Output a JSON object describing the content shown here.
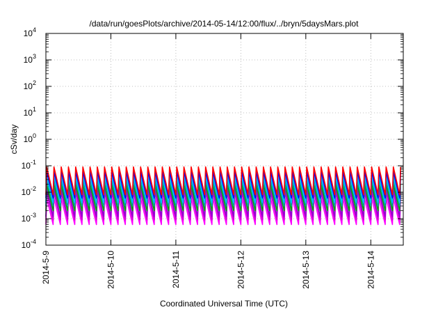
{
  "chart_data": {
    "type": "line",
    "title": "/data/run/goesPlots/archive/2014-05-14/12:00/flux/../bryn/5daysMars.plot",
    "xlabel": "Coordinated Universal Time (UTC)",
    "ylabel": "cSv/day",
    "yscale": "log",
    "ylim": [
      0.0001,
      10000
    ],
    "xlim": [
      "2014-05-09 00:00",
      "2014-05-14 12:00"
    ],
    "grid": true,
    "x_ticks": [
      "2014-5-9",
      "2014-5-10",
      "2014-5-11",
      "2014-5-12",
      "2014-5-13",
      "2014-5-14"
    ],
    "y_ticks": [
      {
        "base": "10",
        "exp": "-4"
      },
      {
        "base": "10",
        "exp": "-3"
      },
      {
        "base": "10",
        "exp": "-2"
      },
      {
        "base": "10",
        "exp": "-1"
      },
      {
        "base": "10",
        "exp": "0"
      },
      {
        "base": "10",
        "exp": "1"
      },
      {
        "base": "10",
        "exp": "2"
      },
      {
        "base": "10",
        "exp": "3"
      },
      {
        "base": "10",
        "exp": "4"
      }
    ],
    "pattern": {
      "description_units": "sawtooth cycles per day",
      "cycles_per_day": 9,
      "peak_value": 0.09,
      "trough_value": 0.0006
    },
    "series": [
      {
        "color": "#ff00ff",
        "low": 0.0006,
        "high": 0.006
      },
      {
        "color": "#cc00cc",
        "low": 0.0009,
        "high": 0.01
      },
      {
        "color": "#9400d3",
        "low": 0.0012,
        "high": 0.015
      },
      {
        "color": "#00aa00",
        "low": 0.002,
        "high": 0.02
      },
      {
        "color": "#00a0a0",
        "low": 0.003,
        "high": 0.03
      },
      {
        "color": "#00bfff",
        "low": 0.004,
        "high": 0.04
      },
      {
        "color": "#0000ff",
        "low": 0.006,
        "high": 0.06
      },
      {
        "color": "#ff0000",
        "low": 0.008,
        "high": 0.09
      }
    ]
  }
}
